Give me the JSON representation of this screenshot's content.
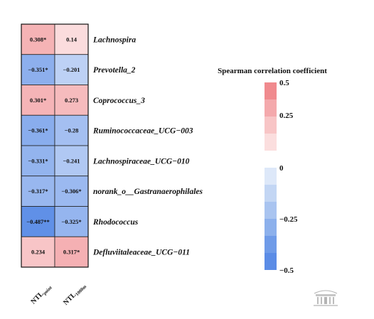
{
  "chart_data": {
    "type": "heatmap",
    "legend_title": "Spearman correlation coefficient",
    "columns": [
      {
        "main": "NTL",
        "sub": "point"
      },
      {
        "main": "NTL",
        "sub": "1000m"
      }
    ],
    "rows": [
      "Lachnospira",
      "Prevotella_2",
      "Coprococcus_3",
      "Ruminococcaceae_UCG−003",
      "Lachnospiraceae_UCG−010",
      "norank_o__Gastranaerophilales",
      "Rhodococcus",
      "Defluviitaleaceae_UCG−011"
    ],
    "values": [
      [
        0.308,
        0.14
      ],
      [
        -0.351,
        -0.201
      ],
      [
        0.301,
        0.273
      ],
      [
        -0.361,
        -0.28
      ],
      [
        -0.331,
        -0.241
      ],
      [
        -0.317,
        -0.306
      ],
      [
        -0.487,
        -0.325
      ],
      [
        0.234,
        0.317
      ]
    ],
    "cell_labels": [
      [
        "0.308*",
        "0.14"
      ],
      [
        "−0.351*",
        "−0.201"
      ],
      [
        "0.301*",
        "0.273"
      ],
      [
        "−0.361*",
        "−0.28"
      ],
      [
        "−0.331*",
        "−0.241"
      ],
      [
        "−0.317*",
        "−0.306*"
      ],
      [
        "−0.487**",
        "−0.325*"
      ],
      [
        "0.234",
        "0.317*"
      ]
    ],
    "color_range": [
      -0.5,
      0.5
    ],
    "legend_ticks": [
      "0.5",
      "0.25",
      "0",
      "−0.25",
      "−0.5"
    ],
    "legend_tick_values": [
      0.5,
      0.25,
      0,
      -0.25,
      -0.5
    ],
    "positive_swatches": [
      "#f08a8e",
      "#f4a9ac",
      "#f8c5c6",
      "#fbdede"
    ],
    "negative_swatches": [
      "#dde8f9",
      "#c3d6f4",
      "#a9c4f0",
      "#8cb0ec",
      "#6f9be8",
      "#5b8ce6"
    ],
    "colors": {
      "pos": "#ef8387",
      "neg": "#5c8de6",
      "mid": "#ffffff"
    }
  },
  "watermark_icon": "building-seal-icon"
}
